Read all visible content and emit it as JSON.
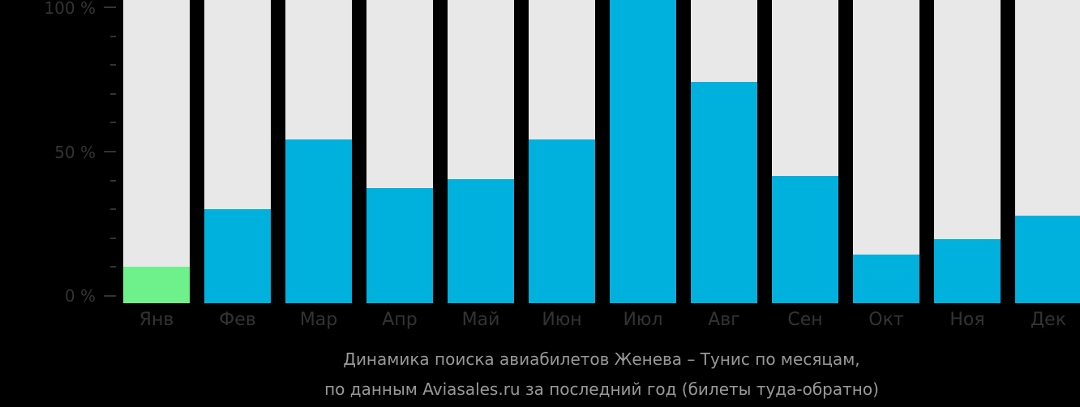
{
  "chart_data": {
    "type": "bar",
    "title": "Динамика поиска авиабилетов Женева – Тунис по месяцам, по данным Aviasales.ru за последний год (билеты туда-обратно)",
    "xlabel": "",
    "ylabel": "",
    "ylim": [
      0,
      100
    ],
    "yticks": [
      "0 %",
      "50 %",
      "100 %"
    ],
    "grid": false,
    "legend": null,
    "categories": [
      "Янв",
      "Фев",
      "Мар",
      "Апр",
      "Май",
      "Июн",
      "Июл",
      "Авг",
      "Сен",
      "Окт",
      "Ноя",
      "Дек"
    ],
    "values": [
      12,
      31,
      54,
      38,
      41,
      54,
      100,
      73,
      42,
      16,
      21,
      29
    ],
    "highlight_index": 0,
    "colors": {
      "bar": "#00b0dd",
      "highlight": "#6ef08a",
      "background_bar": "#e8e8e8"
    }
  },
  "caption": {
    "line1": "Динамика поиска авиабилетов Женева – Тунис по месяцам,",
    "line2": "по данным Aviasales.ru за последний год (билеты туда-обратно)"
  },
  "axis": {
    "y_labels": [
      "100 %",
      "50 %",
      "0 %"
    ]
  }
}
